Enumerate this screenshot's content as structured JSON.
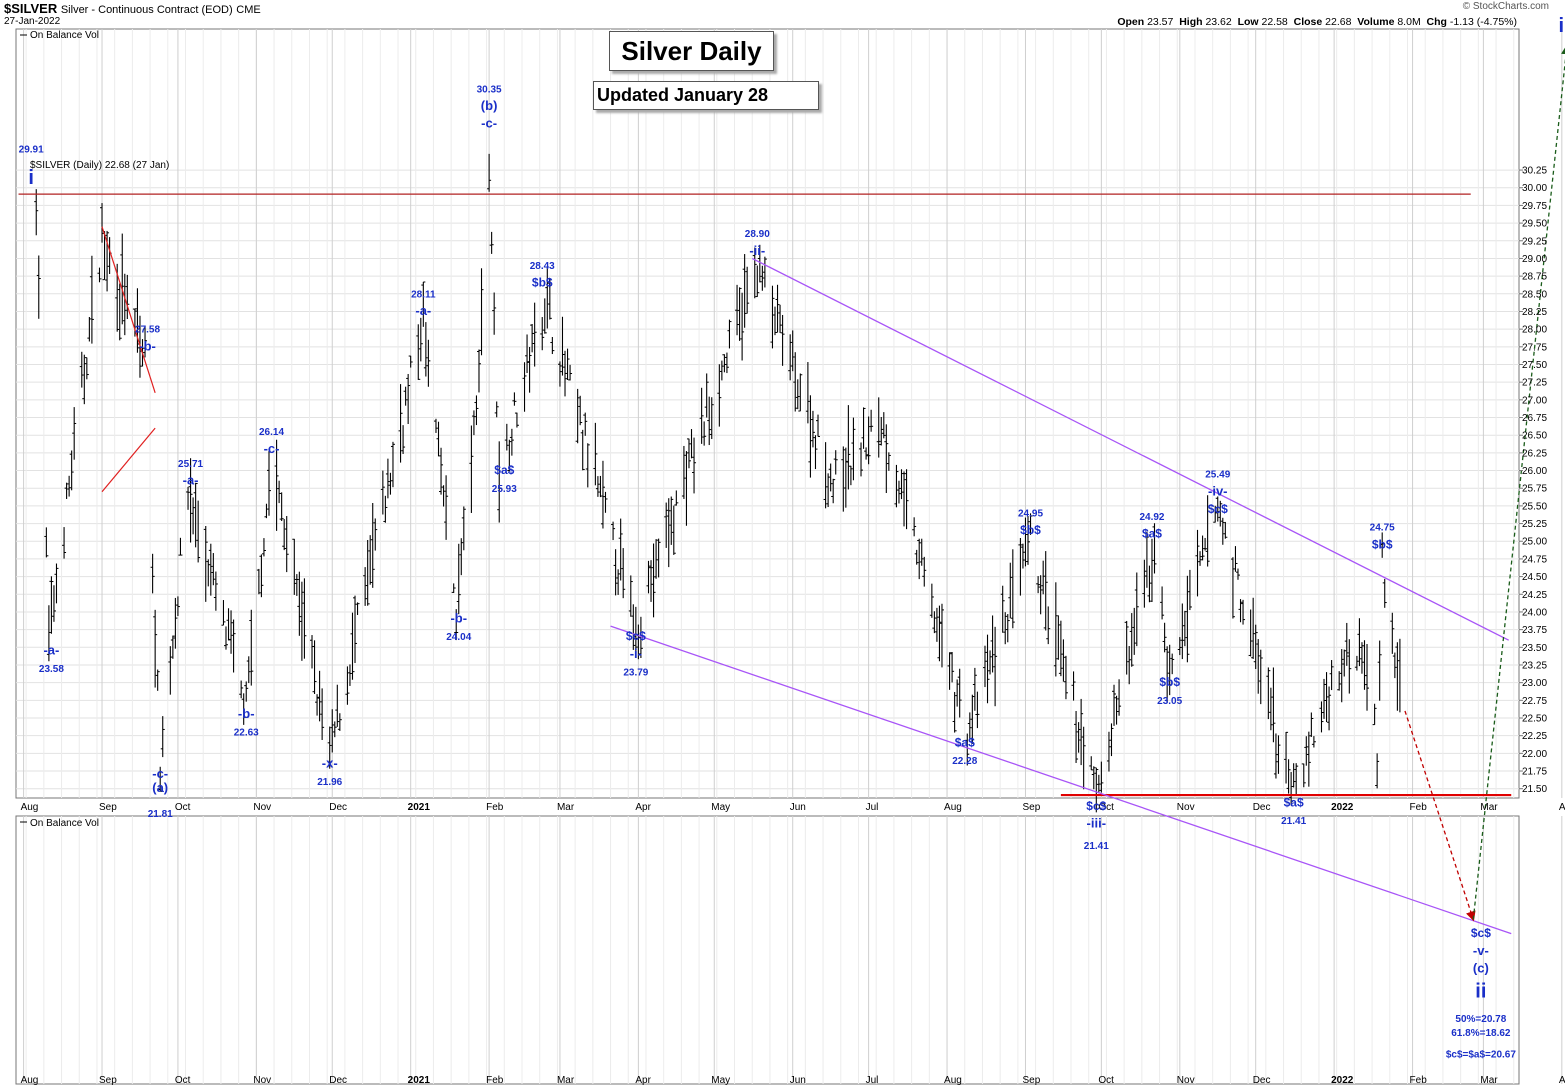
{
  "header": {
    "ticker": "$SILVER",
    "description": "Silver - Continuous Contract (EOD)",
    "exchange": "CME",
    "date": "27-Jan-2022",
    "open_label": "Open",
    "open": "23.57",
    "high_label": "High",
    "high": "23.62",
    "low_label": "Low",
    "low": "22.58",
    "close_label": "Close",
    "close": "22.68",
    "volume_label": "Volume",
    "volume": "8.0M",
    "change_label": "Chg",
    "change": "-1.13 (-4.75%)",
    "brand": "© StockCharts.com"
  },
  "title": "Silver Daily",
  "subtitle": "Updated January 28",
  "legend": {
    "indicator_top": "On Balance Vol",
    "price_label": "$SILVER (Daily) 22.68 (27 Jan)",
    "indicator_bottom": "On Balance Vol"
  },
  "chart_data": {
    "type": "ohlc",
    "series_name": "$SILVER (Daily)",
    "y_axis": {
      "range": [
        21.4,
        30.35
      ],
      "ticks": [
        "30.25",
        "30.00",
        "29.75",
        "29.50",
        "29.25",
        "29.00",
        "28.75",
        "28.50",
        "28.25",
        "28.00",
        "27.75",
        "27.50",
        "27.25",
        "27.00",
        "26.75",
        "26.50",
        "26.25",
        "26.00",
        "25.75",
        "25.50",
        "25.25",
        "25.00",
        "24.75",
        "24.50",
        "24.25",
        "24.00",
        "23.75",
        "23.50",
        "23.25",
        "23.00",
        "22.75",
        "22.50",
        "22.25",
        "22.00",
        "21.75",
        "21.50"
      ]
    },
    "x_axis": {
      "range": [
        "2020-08-01",
        "2022-04-30"
      ],
      "ticks": [
        {
          "label": "Aug",
          "date": "2020-08-01",
          "bold": false
        },
        {
          "label": "Sep",
          "date": "2020-09-01",
          "bold": false
        },
        {
          "label": "Oct",
          "date": "2020-10-01",
          "bold": false
        },
        {
          "label": "Nov",
          "date": "2020-11-01",
          "bold": false
        },
        {
          "label": "Dec",
          "date": "2020-12-01",
          "bold": false
        },
        {
          "label": "2021",
          "date": "2021-01-01",
          "bold": true
        },
        {
          "label": "Feb",
          "date": "2021-02-01",
          "bold": false
        },
        {
          "label": "Mar",
          "date": "2021-03-01",
          "bold": false
        },
        {
          "label": "Apr",
          "date": "2021-04-01",
          "bold": false
        },
        {
          "label": "May",
          "date": "2021-05-01",
          "bold": false
        },
        {
          "label": "Jun",
          "date": "2021-06-01",
          "bold": false
        },
        {
          "label": "Jul",
          "date": "2021-07-01",
          "bold": false
        },
        {
          "label": "Aug",
          "date": "2021-08-01",
          "bold": false
        },
        {
          "label": "Sep",
          "date": "2021-09-01",
          "bold": false
        },
        {
          "label": "Oct",
          "date": "2021-10-01",
          "bold": false
        },
        {
          "label": "Nov",
          "date": "2021-11-01",
          "bold": false
        },
        {
          "label": "Dec",
          "date": "2021-12-01",
          "bold": false
        },
        {
          "label": "2022",
          "date": "2022-01-01",
          "bold": true
        },
        {
          "label": "Feb",
          "date": "2022-02-01",
          "bold": false
        },
        {
          "label": "Mar",
          "date": "2022-03-01",
          "bold": false
        },
        {
          "label": "Apr",
          "date": "2022-04-01",
          "bold": false
        }
      ]
    },
    "pivots": [
      {
        "date": "2020-08-06",
        "price": 29.91
      },
      {
        "date": "2020-08-11",
        "price": 23.58
      },
      {
        "date": "2020-09-01",
        "price": 29.3
      },
      {
        "date": "2020-09-18",
        "price": 27.58
      },
      {
        "date": "2020-09-24",
        "price": 21.81
      },
      {
        "date": "2020-10-05",
        "price": 25.71
      },
      {
        "date": "2020-10-28",
        "price": 22.63
      },
      {
        "date": "2020-11-07",
        "price": 26.14
      },
      {
        "date": "2020-11-30",
        "price": 21.96
      },
      {
        "date": "2021-01-06",
        "price": 28.11
      },
      {
        "date": "2021-01-19",
        "price": 24.04
      },
      {
        "date": "2021-01-27",
        "price": 26.8
      },
      {
        "date": "2021-02-01",
        "price": 30.35
      },
      {
        "date": "2021-02-05",
        "price": 25.93
      },
      {
        "date": "2021-02-23",
        "price": 28.43
      },
      {
        "date": "2021-03-31",
        "price": 23.79
      },
      {
        "date": "2021-05-18",
        "price": 28.9
      },
      {
        "date": "2021-06-17",
        "price": 25.8
      },
      {
        "date": "2021-07-06",
        "price": 26.7
      },
      {
        "date": "2021-08-09",
        "price": 22.28
      },
      {
        "date": "2021-09-03",
        "price": 24.95
      },
      {
        "date": "2021-09-29",
        "price": 21.41
      },
      {
        "date": "2021-10-22",
        "price": 24.92
      },
      {
        "date": "2021-10-28",
        "price": 23.05
      },
      {
        "date": "2021-11-16",
        "price": 25.49
      },
      {
        "date": "2021-12-15",
        "price": 21.41
      },
      {
        "date": "2022-01-04",
        "price": 23.3
      },
      {
        "date": "2022-01-13",
        "price": 23.6
      },
      {
        "date": "2022-01-18",
        "price": 22.0
      },
      {
        "date": "2022-01-20",
        "price": 24.75
      },
      {
        "date": "2022-01-27",
        "price": 22.68
      }
    ],
    "lines": [
      {
        "kind": "resistance",
        "color": "#b22222",
        "from": {
          "date": "2020-07-30",
          "price": 29.91
        },
        "to": {
          "date": "2022-02-24",
          "price": 29.91
        }
      },
      {
        "kind": "support",
        "color": "#e00000",
        "from": {
          "date": "2021-09-15",
          "price": 21.41
        },
        "to": {
          "date": "2022-03-12",
          "price": 21.41
        }
      },
      {
        "kind": "channel-upper",
        "color": "#a855f7",
        "from": {
          "date": "2021-05-16",
          "price": 29.0
        },
        "to": {
          "date": "2022-03-11",
          "price": 23.6
        }
      },
      {
        "kind": "channel-lower",
        "color": "#a855f7",
        "from": {
          "date": "2021-03-21",
          "price": 23.8
        },
        "to": {
          "date": "2022-03-12",
          "price": 19.45
        }
      },
      {
        "kind": "wedge-top",
        "color": "#e02020",
        "from": {
          "date": "2020-09-01",
          "price": 29.45
        },
        "to": {
          "date": "2020-09-22",
          "price": 27.1
        }
      },
      {
        "kind": "wedge-bottom",
        "color": "#e02020",
        "from": {
          "date": "2020-09-01",
          "price": 25.7
        },
        "to": {
          "date": "2020-09-22",
          "price": 26.6
        }
      }
    ],
    "projections": [
      {
        "style": "dashed",
        "color": "#c00000",
        "from": {
          "date": "2022-01-29",
          "price": 22.6
        },
        "to": {
          "date": "2022-02-25",
          "price": 19.65
        }
      },
      {
        "style": "dashed",
        "color": "#1a5c1a",
        "from": {
          "date": "2022-02-25",
          "price": 19.65
        },
        "to": {
          "date": "2022-04-03",
          "price": 32.0
        }
      }
    ],
    "annotations": [
      {
        "text": "29.91",
        "date": "2020-08-04",
        "price": 30.5,
        "size": 10
      },
      {
        "text": "i",
        "date": "2020-08-04",
        "price": 30.05,
        "size": 20
      },
      {
        "text": "-a-",
        "date": "2020-08-12",
        "price": 23.4,
        "size": 13
      },
      {
        "text": "23.58",
        "date": "2020-08-12",
        "price": 23.15,
        "size": 10
      },
      {
        "text": "27.58",
        "date": "2020-09-19",
        "price": 27.95,
        "size": 10
      },
      {
        "text": "-b-",
        "date": "2020-09-19",
        "price": 27.7,
        "size": 13
      },
      {
        "text": "-c-",
        "date": "2020-09-24",
        "price": 21.65,
        "size": 13
      },
      {
        "text": "(a)",
        "date": "2020-09-24",
        "price": 21.45,
        "size": 13
      },
      {
        "text": "21.81",
        "date": "2020-09-24",
        "price": 21.1,
        "size": 10
      },
      {
        "text": "25.71",
        "date": "2020-10-06",
        "price": 26.05,
        "size": 10
      },
      {
        "text": "-a-",
        "date": "2020-10-06",
        "price": 25.8,
        "size": 13
      },
      {
        "text": "-b-",
        "date": "2020-10-28",
        "price": 22.5,
        "size": 13
      },
      {
        "text": "22.63",
        "date": "2020-10-28",
        "price": 22.25,
        "size": 10
      },
      {
        "text": "26.14",
        "date": "2020-11-07",
        "price": 26.5,
        "size": 10
      },
      {
        "text": "-c-",
        "date": "2020-11-07",
        "price": 26.25,
        "size": 13
      },
      {
        "text": "-x-",
        "date": "2020-11-30",
        "price": 21.8,
        "size": 13
      },
      {
        "text": "21.96",
        "date": "2020-11-30",
        "price": 21.55,
        "size": 10
      },
      {
        "text": "28.11",
        "date": "2021-01-06",
        "price": 28.45,
        "size": 10
      },
      {
        "text": "-a-",
        "date": "2021-01-06",
        "price": 28.2,
        "size": 13
      },
      {
        "text": "-b-",
        "date": "2021-01-20",
        "price": 23.85,
        "size": 13
      },
      {
        "text": "24.04",
        "date": "2021-01-20",
        "price": 23.6,
        "size": 10
      },
      {
        "text": "30.35",
        "date": "2021-02-01",
        "price": 31.35,
        "size": 10
      },
      {
        "text": "(b)",
        "date": "2021-02-01",
        "price": 31.1,
        "size": 13
      },
      {
        "text": "-c-",
        "date": "2021-02-01",
        "price": 30.85,
        "size": 13
      },
      {
        "text": "$a$",
        "date": "2021-02-07",
        "price": 25.95,
        "size": 12
      },
      {
        "text": "25.93",
        "date": "2021-02-07",
        "price": 25.7,
        "size": 10
      },
      {
        "text": "28.43",
        "date": "2021-02-22",
        "price": 28.85,
        "size": 10
      },
      {
        "text": "$b$",
        "date": "2021-02-22",
        "price": 28.6,
        "size": 12
      },
      {
        "text": "$c$",
        "date": "2021-03-31",
        "price": 23.6,
        "size": 12
      },
      {
        "text": "-i-",
        "date": "2021-03-31",
        "price": 23.35,
        "size": 13
      },
      {
        "text": "23.79",
        "date": "2021-03-31",
        "price": 23.1,
        "size": 10
      },
      {
        "text": "28.90",
        "date": "2021-05-18",
        "price": 29.3,
        "size": 10
      },
      {
        "text": "-ii-",
        "date": "2021-05-18",
        "price": 29.05,
        "size": 13
      },
      {
        "text": "$a$",
        "date": "2021-08-08",
        "price": 22.1,
        "size": 12
      },
      {
        "text": "22.28",
        "date": "2021-08-08",
        "price": 21.85,
        "size": 10
      },
      {
        "text": "24.95",
        "date": "2021-09-03",
        "price": 25.35,
        "size": 10
      },
      {
        "text": "$b$",
        "date": "2021-09-03",
        "price": 25.1,
        "size": 12
      },
      {
        "text": "$c$",
        "date": "2021-09-29",
        "price": 21.2,
        "size": 12
      },
      {
        "text": "-iii-",
        "date": "2021-09-29",
        "price": 20.95,
        "size": 13
      },
      {
        "text": "21.41",
        "date": "2021-09-29",
        "price": 20.65,
        "size": 10
      },
      {
        "text": "24.92",
        "date": "2021-10-21",
        "price": 25.3,
        "size": 10
      },
      {
        "text": "$a$",
        "date": "2021-10-21",
        "price": 25.05,
        "size": 12
      },
      {
        "text": "$b$",
        "date": "2021-10-28",
        "price": 22.95,
        "size": 12
      },
      {
        "text": "23.05",
        "date": "2021-10-28",
        "price": 22.7,
        "size": 10
      },
      {
        "text": "25.49",
        "date": "2021-11-16",
        "price": 25.9,
        "size": 10
      },
      {
        "text": "-iv-",
        "date": "2021-11-16",
        "price": 25.65,
        "size": 13
      },
      {
        "text": "$c$",
        "date": "2021-11-16",
        "price": 25.4,
        "size": 12
      },
      {
        "text": "$a$",
        "date": "2021-12-16",
        "price": 21.25,
        "size": 12
      },
      {
        "text": "21.41",
        "date": "2021-12-16",
        "price": 21.0,
        "size": 10
      },
      {
        "text": "24.75",
        "date": "2022-01-20",
        "price": 25.15,
        "size": 10
      },
      {
        "text": "$b$",
        "date": "2022-01-20",
        "price": 24.9,
        "size": 12
      },
      {
        "text": "$c$",
        "date": "2022-02-28",
        "price": 19.4,
        "size": 12
      },
      {
        "text": "-v-",
        "date": "2022-02-28",
        "price": 19.15,
        "size": 13
      },
      {
        "text": "(c)",
        "date": "2022-02-28",
        "price": 18.9,
        "size": 13
      },
      {
        "text": "ii",
        "date": "2022-02-28",
        "price": 18.55,
        "size": 20
      },
      {
        "text": "50%=20.78",
        "date": "2022-02-28",
        "price": 18.2,
        "size": 10
      },
      {
        "text": "61.8%=18.62",
        "date": "2022-02-28",
        "price": 18.0,
        "size": 10
      },
      {
        "text": "$c$=$a$=20.67",
        "date": "2022-02-28",
        "price": 17.7,
        "size": 10
      },
      {
        "text": "iii",
        "date": "2022-04-03",
        "price": 32.2,
        "size": 20
      }
    ]
  }
}
